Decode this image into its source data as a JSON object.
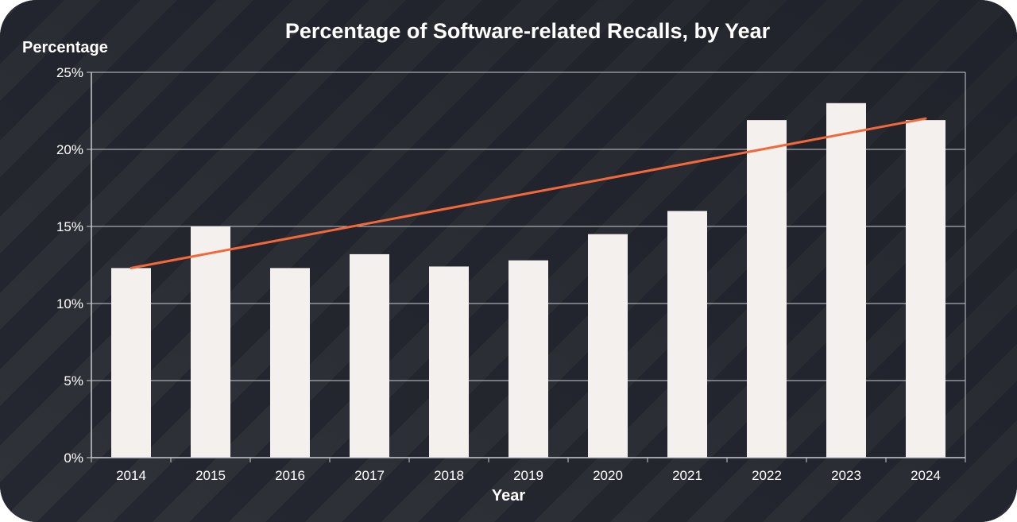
{
  "chart_data": {
    "type": "bar",
    "title": "Percentage of Software-related Recalls, by Year",
    "xlabel": "Year",
    "ylabel": "Percentage",
    "categories": [
      "2014",
      "2015",
      "2016",
      "2017",
      "2018",
      "2019",
      "2020",
      "2021",
      "2022",
      "2023",
      "2024"
    ],
    "values": [
      12.3,
      15.0,
      12.3,
      13.2,
      12.4,
      12.8,
      14.5,
      16.0,
      21.9,
      23.0,
      21.9
    ],
    "ylim": [
      0,
      25
    ],
    "yticks": [
      0,
      5,
      10,
      15,
      20,
      25
    ],
    "ytick_labels": [
      "0%",
      "5%",
      "10%",
      "15%",
      "20%",
      "25%"
    ],
    "trendline": {
      "start": 12.3,
      "end": 22.0
    },
    "grid": true,
    "colors": {
      "bar": "#f4f0ed",
      "trendline": "#f2683a",
      "background": "#252730",
      "grid": "#c9cbd1",
      "text": "#ffffff"
    }
  }
}
